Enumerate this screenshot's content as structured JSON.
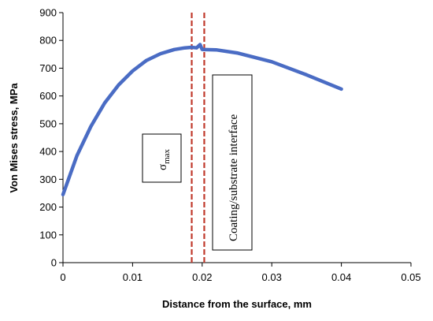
{
  "chart_data": {
    "type": "line",
    "title": "",
    "xlabel": "Distance from the surface,  mm",
    "ylabel": "Von Mises stress,  MPa",
    "xlim": [
      0,
      0.05
    ],
    "ylim": [
      0,
      900
    ],
    "x_ticks": [
      "0",
      "0.01",
      "0.02",
      "0.03",
      "0.04",
      "0.05"
    ],
    "y_ticks": [
      "0",
      "100",
      "200",
      "300",
      "400",
      "500",
      "600",
      "700",
      "800",
      "900"
    ],
    "grid": false,
    "legend": "none",
    "series": [
      {
        "color": "#4a6cc4",
        "x": [
          0,
          0.002,
          0.004,
          0.006,
          0.008,
          0.01,
          0.012,
          0.014,
          0.016,
          0.0175,
          0.0185,
          0.0192,
          0.0197,
          0.02,
          0.022,
          0.025,
          0.03,
          0.035,
          0.04
        ],
        "y": [
          245,
          385,
          490,
          575,
          640,
          690,
          728,
          752,
          767,
          773,
          775,
          773,
          785,
          767,
          766,
          755,
          723,
          676,
          625
        ]
      }
    ],
    "reference_lines": [
      {
        "x": 0.0185,
        "color": "#c0392b",
        "style": "dashed"
      },
      {
        "x": 0.0203,
        "color": "#c0392b",
        "style": "dashed"
      }
    ],
    "annotations": {
      "sigma_symbol": "σ",
      "sigma_subscript": "max",
      "interface_label": "Coating/substrate interface"
    }
  }
}
